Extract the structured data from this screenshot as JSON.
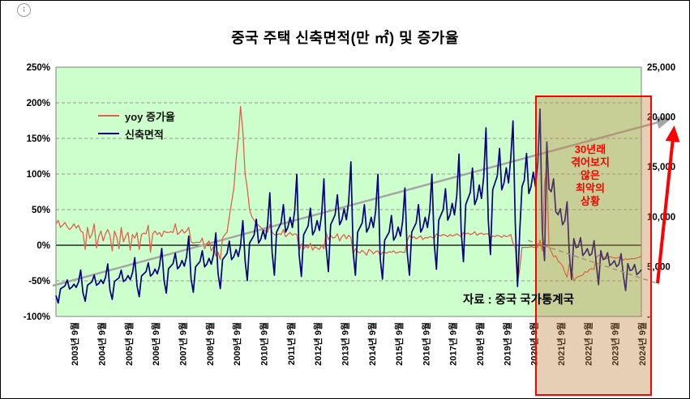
{
  "colors": {
    "plot_bg": "#ccffcc",
    "yoy_line": "#e4604e",
    "area_line": "#000080",
    "gridline": "#999999",
    "plot_border": "#808080",
    "trend_arrow": "#a6a6a6",
    "decline_dash": "#9a9a9a",
    "highlight_fill": "#c08040",
    "highlight_border": "#ff0000",
    "surge_arrow": "#ff0000"
  },
  "annotation": {
    "text": "30년래\n겪어보지\n않은\n최악의\n상황"
  },
  "source": "자료 : 중국 국가통계국",
  "corner_icon_glyph": "↕",
  "chart_data": {
    "type": "line",
    "title": "중국 주택 신축면적(만 ㎡) 및 증가율",
    "x_start": "2003-01",
    "x_freq": "monthly",
    "x_tick_labels": [
      "2003년 9월",
      "2004년 9월",
      "2005년 9월",
      "2006년 9월",
      "2007년 9월",
      "2008년 9월",
      "2009년 9월",
      "2010년 9월",
      "2011년 9월",
      "2012년 9월",
      "2013년 9월",
      "2014년 9월",
      "2015년 9월",
      "2016년 9월",
      "2017년 9월",
      "2018년 9월",
      "2019년 9월",
      "2020년 9월",
      "2021년 9월",
      "2022년 9월",
      "2023년 9월",
      "2024년 9월"
    ],
    "left_axis": {
      "range": [
        -100,
        250
      ],
      "unit": "%",
      "ticks": [
        "250%",
        "200%",
        "150%",
        "100%",
        "50%",
        "0%",
        "-50%",
        "-100%"
      ]
    },
    "right_axis": {
      "range": [
        0,
        25000
      ],
      "unit": "만 ㎡",
      "ticks": [
        "25,000",
        "20,000",
        "15,000",
        "10,000",
        "5,000",
        "-"
      ]
    },
    "legend_position": "top-left-inside",
    "grid": "dashed-horizontal",
    "highlight_region": {
      "x_from": "2020-11",
      "x_to": "2024-09"
    },
    "series": [
      {
        "name": "yoy 증가율",
        "axis": "left",
        "values": [
          30,
          35,
          25,
          28,
          32,
          26,
          22,
          25,
          30,
          24,
          28,
          20,
          18,
          -6,
          25,
          10,
          15,
          30,
          -4,
          12,
          20,
          6,
          16,
          22,
          14,
          -8,
          20,
          11,
          -5,
          25,
          5,
          13,
          18,
          -7,
          15,
          10,
          18,
          -6,
          15,
          17,
          16,
          28,
          -10,
          16,
          20,
          15,
          18,
          12,
          20,
          18,
          18,
          19,
          18,
          30,
          15,
          18,
          22,
          17,
          20,
          25,
          5,
          3,
          4,
          4,
          4,
          10,
          -5,
          2,
          6,
          -8,
          -2,
          -15,
          -10,
          -20,
          10,
          15,
          18,
          40,
          60,
          80,
          120,
          150,
          195,
          160,
          100,
          80,
          50,
          40,
          35,
          30,
          28,
          25,
          22,
          20,
          18,
          29,
          18,
          15,
          14,
          16,
          15,
          22,
          12,
          15,
          18,
          14,
          16,
          15,
          -8,
          2,
          -5,
          -1,
          -4,
          3,
          -7,
          -2,
          -4,
          -6,
          0,
          -5,
          18,
          8,
          14,
          10,
          11,
          16,
          6,
          12,
          15,
          9,
          14,
          11,
          -12,
          -5,
          -9,
          -11,
          -7,
          -10,
          -14,
          -6,
          -8,
          -12,
          -9,
          -8,
          -14,
          -10,
          -10,
          -11,
          -9,
          -10,
          -8,
          -11,
          -10,
          -9,
          -10,
          -10,
          6,
          14,
          10,
          12,
          9,
          11,
          13,
          8,
          11,
          10,
          12,
          11,
          10,
          16,
          14,
          13,
          15,
          14,
          12,
          15,
          13,
          14,
          16,
          14,
          12,
          18,
          16,
          17,
          15,
          16,
          19,
          14,
          16,
          17,
          15,
          16,
          16,
          10,
          13,
          12,
          14,
          13,
          11,
          14,
          12,
          13,
          15,
          3,
          -3,
          -52,
          -33,
          -3,
          -3,
          -3,
          -3,
          -2,
          -3,
          -3,
          -3,
          7,
          -8,
          87,
          106,
          -2,
          -9,
          -16,
          -15,
          -22,
          -25,
          -29,
          -38,
          -45,
          -27,
          -34,
          -50,
          -46,
          -44,
          -43,
          -42,
          -37,
          -38,
          -34,
          -33,
          -34,
          -17,
          -14,
          -15,
          -17,
          -17,
          -19,
          -16,
          -17,
          -18,
          -18,
          -17,
          -17,
          -21,
          -19,
          -20,
          -19,
          -19,
          -19,
          -18,
          -17,
          -15
        ]
      },
      {
        "name": "신축면적",
        "axis": "right",
        "values": [
          2100,
          1350,
          2760,
          2910,
          3060,
          3660,
          2760,
          2910,
          3240,
          2910,
          3450,
          4650,
          2380,
          1530,
          3130,
          3300,
          3470,
          4150,
          3130,
          3300,
          3670,
          3300,
          3910,
          5270,
          2660,
          1710,
          3500,
          3690,
          3880,
          4640,
          3500,
          3690,
          4100,
          3690,
          4370,
          5890,
          3080,
          1980,
          4050,
          4270,
          4490,
          5370,
          4050,
          4270,
          4750,
          4270,
          5060,
          6820,
          3640,
          2340,
          4780,
          5040,
          5300,
          6340,
          4780,
          5040,
          5620,
          5040,
          5980,
          8060,
          3780,
          2430,
          4970,
          5240,
          5510,
          6590,
          4970,
          5240,
          5830,
          5240,
          6210,
          8370,
          4340,
          2790,
          5700,
          6010,
          6320,
          7560,
          5700,
          6010,
          6700,
          6010,
          7130,
          9610,
          5600,
          3600,
          7360,
          7760,
          8160,
          9760,
          7360,
          7760,
          8640,
          7760,
          9200,
          12400,
          6440,
          4140,
          8460,
          8920,
          9380,
          11220,
          8460,
          8920,
          9940,
          8920,
          10580,
          14260,
          6230,
          4010,
          8190,
          8630,
          9080,
          10860,
          8190,
          8630,
          9610,
          8630,
          10240,
          13800,
          7000,
          4500,
          9200,
          9700,
          10200,
          12200,
          9200,
          9700,
          10800,
          9700,
          11500,
          15500,
          6440,
          4140,
          8460,
          8920,
          9380,
          11220,
          8460,
          8920,
          9940,
          8920,
          10580,
          14260,
          5810,
          3740,
          7640,
          8050,
          8470,
          10130,
          7640,
          8050,
          8960,
          8050,
          9550,
          12870,
          6440,
          4140,
          8460,
          8920,
          9380,
          11220,
          8460,
          8920,
          9940,
          8920,
          10580,
          14260,
          7350,
          4730,
          9660,
          10190,
          10710,
          12810,
          9660,
          10190,
          11340,
          10190,
          12080,
          16280,
          8540,
          5490,
          11220,
          11830,
          12440,
          14880,
          11220,
          11830,
          13180,
          11830,
          14030,
          18910,
          9660,
          6210,
          12700,
          13390,
          14080,
          16840,
          12700,
          13390,
          14900,
          13390,
          15870,
          19600,
          9380,
          3000,
          8500,
          13000,
          13670,
          16350,
          12330,
          13000,
          14470,
          13000,
          15410,
          20800,
          8600,
          5600,
          17500,
          12800,
          12500,
          13800,
          10500,
          10200,
          10800,
          9200,
          9600,
          11500,
          6300,
          3700,
          7800,
          6900,
          7000,
          7900,
          6100,
          6400,
          6800,
          6100,
          6300,
          7600,
          5200,
          3200,
          6600,
          5700,
          5800,
          6400,
          5100,
          5300,
          5600,
          5000,
          5200,
          6300,
          4100,
          2600,
          5300,
          4600,
          4700,
          5200,
          4200,
          4400,
          4700
        ]
      }
    ]
  }
}
